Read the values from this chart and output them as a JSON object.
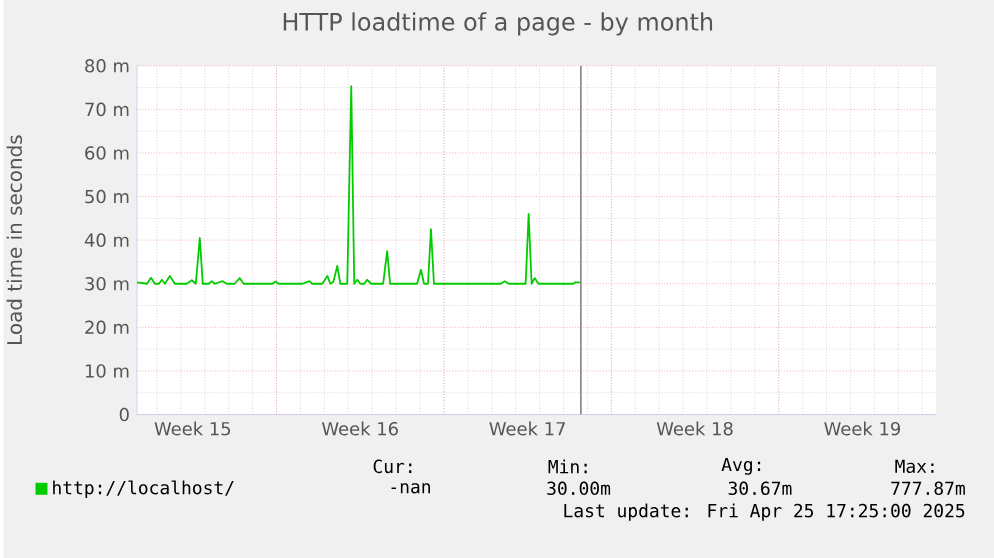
{
  "chart_data": {
    "type": "line",
    "title": "HTTP loadtime of a page - by month",
    "ylabel": "Load time in seconds",
    "x": [
      "2025-04-07T04:00",
      "2025-04-07T14:00",
      "2025-04-07T18:00",
      "2025-04-07T22:00",
      "2025-04-08T02:00",
      "2025-04-08T05:00",
      "2025-04-08T08:00",
      "2025-04-08T13:00",
      "2025-04-08T18:00",
      "2025-04-09T06:00",
      "2025-04-09T11:00",
      "2025-04-09T15:00",
      "2025-04-09T19:00",
      "2025-04-09T22:00",
      "2025-04-10T04:00",
      "2025-04-10T07:00",
      "2025-04-10T10:00",
      "2025-04-10T18:00",
      "2025-04-10T22:00",
      "2025-04-11T06:00",
      "2025-04-11T11:00",
      "2025-04-11T15:00",
      "2025-04-12T20:00",
      "2025-04-12T23:00",
      "2025-04-13T02:00",
      "2025-04-14T02:00",
      "2025-04-14T09:00",
      "2025-04-14T12:00",
      "2025-04-14T22:00",
      "2025-04-15T03:00",
      "2025-04-15T06:00",
      "2025-04-15T09:00",
      "2025-04-15T13:00",
      "2025-04-15T16:00",
      "2025-04-15T23:00",
      "2025-04-16T03:00",
      "2025-04-16T06:00",
      "2025-04-16T09:00",
      "2025-04-16T12:00",
      "2025-04-16T16:00",
      "2025-04-16T19:00",
      "2025-04-16T23:00",
      "2025-04-17T11:00",
      "2025-04-17T15:00",
      "2025-04-17T18:00",
      "2025-04-18T21:00",
      "2025-04-19T01:00",
      "2025-04-19T04:00",
      "2025-04-19T08:00",
      "2025-04-19T11:00",
      "2025-04-19T14:00",
      "2025-04-22T09:00",
      "2025-04-22T13:00",
      "2025-04-22T17:00",
      "2025-04-23T10:00",
      "2025-04-23T13:00",
      "2025-04-23T16:00",
      "2025-04-23T19:00",
      "2025-04-23T23:00",
      "2025-04-25T10:00",
      "2025-04-25T11:00",
      "2025-04-25T17:00"
    ],
    "series": [
      {
        "name": "http://localhost/",
        "color": "#00cc00",
        "values": [
          30.3,
          30,
          31.4,
          30,
          30,
          30.9,
          30,
          31.8,
          30,
          30,
          30.8,
          30,
          40.5,
          30,
          30,
          30.6,
          30,
          30.6,
          30,
          30,
          31.3,
          30,
          30,
          30.5,
          30,
          30,
          30.6,
          30,
          30,
          31.8,
          30,
          30.4,
          34.1,
          30,
          30,
          75.3,
          30,
          30.9,
          30,
          30,
          30.9,
          30,
          30,
          37.5,
          30,
          30,
          33.2,
          30,
          30,
          42.5,
          30,
          30,
          30.6,
          30,
          30,
          46.0,
          30,
          31.3,
          30,
          30,
          30.3,
          30.3
        ]
      }
    ],
    "xlim": [
      "2025-04-07T04:00",
      "2025-05-10T14:00"
    ],
    "xticks": [
      {
        "value": "2025-04-09T12:00",
        "label": "Week 15"
      },
      {
        "value": "2025-04-13",
        "label": null
      },
      {
        "value": "2025-04-16T12:00",
        "label": "Week 16"
      },
      {
        "value": "2025-04-20",
        "label": null
      },
      {
        "value": "2025-04-23T12:00",
        "label": "Week 17"
      },
      {
        "value": "2025-04-27",
        "label": null
      },
      {
        "value": "2025-04-30T12:00",
        "label": "Week 18"
      },
      {
        "value": "2025-05-04",
        "label": null
      },
      {
        "value": "2025-05-07T12:00",
        "label": "Week 19"
      }
    ],
    "ylim": [
      0,
      80
    ],
    "yticks": [
      0,
      {
        "value": 10,
        "label": "10 m"
      },
      {
        "value": 20,
        "label": "20 m"
      },
      {
        "value": 30,
        "label": "30 m"
      },
      {
        "value": 40,
        "label": "40 m"
      },
      {
        "value": 50,
        "label": "50 m"
      },
      {
        "value": 60,
        "label": "60 m"
      },
      {
        "value": 70,
        "label": "70 m"
      },
      {
        "value": 80,
        "label": "80 m"
      }
    ],
    "ref_lines": [
      {
        "axis": "x",
        "value": "2025-04-25T17:25",
        "color": "#808080"
      }
    ],
    "grid": true,
    "legend": "bottom left",
    "marker": "none",
    "line_style": "solid",
    "annotations": [
      "Cur:",
      "Min:",
      "Avg:",
      "Max:",
      "-nan",
      "30.00m",
      "30.67m",
      "777.87m",
      "Last update: Fri Apr 25 17:25:00 2025"
    ]
  }
}
